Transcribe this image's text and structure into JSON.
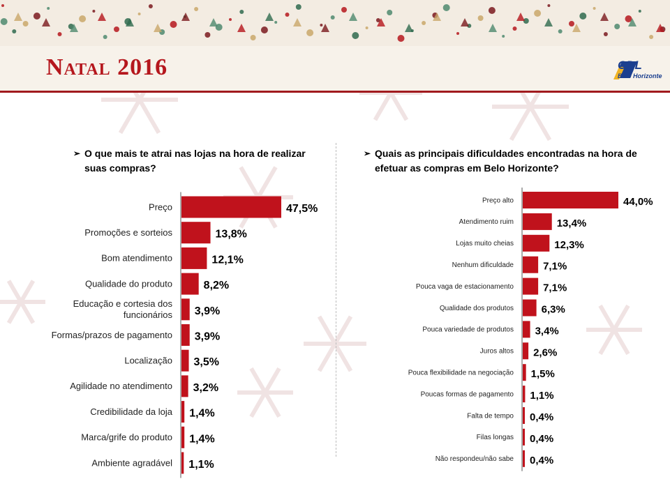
{
  "header": {
    "title": "Natal 2016",
    "logo_text": "CDL",
    "logo_sub": "Belo Horizonte"
  },
  "left_question": "O que mais te atrai nas lojas na hora de realizar suas compras?",
  "right_question": "Quais as principais dificuldades encontradas na hora de efetuar as compras em Belo Horizonte?",
  "colors": {
    "bar": "#c0121c",
    "accent": "#a11a1e"
  },
  "chart_data": [
    {
      "type": "bar",
      "orientation": "horizontal",
      "categories": [
        "Preço",
        "Promoções e sorteios",
        "Bom atendimento",
        "Qualidade do produto",
        "Educação e cortesia dos funcionários",
        "Formas/prazos de pagamento",
        "Localização",
        "Agilidade no atendimento",
        "Credibilidade da loja",
        "Marca/grife do produto",
        "Ambiente agradável"
      ],
      "values": [
        47.5,
        13.8,
        12.1,
        8.2,
        3.9,
        3.9,
        3.5,
        3.2,
        1.4,
        1.4,
        1.1
      ],
      "labels": [
        "47,5%",
        "13,8%",
        "12,1%",
        "8,2%",
        "3,9%",
        "3,9%",
        "3,5%",
        "3,2%",
        "1,4%",
        "1,4%",
        "1,1%"
      ],
      "title": "",
      "xlabel": "",
      "ylabel": ""
    },
    {
      "type": "bar",
      "orientation": "horizontal",
      "categories": [
        "Preço alto",
        "Atendimento ruim",
        "Lojas muito cheias",
        "Nenhum dificuldade",
        "Pouca vaga de estacionamento",
        "Qualidade dos produtos",
        "Pouca variedade de produtos",
        "Juros altos",
        "Pouca flexibilidade na negociação",
        "Poucas formas de pagamento",
        "Falta de tempo",
        "Filas longas",
        "Não respondeu/não sabe"
      ],
      "values": [
        44.0,
        13.4,
        12.3,
        7.1,
        7.1,
        6.3,
        3.4,
        2.6,
        1.5,
        1.1,
        0.4,
        0.4,
        0.4
      ],
      "labels": [
        "44,0%",
        "13,4%",
        "12,3%",
        "7,1%",
        "7,1%",
        "6,3%",
        "3,4%",
        "2,6%",
        "1,5%",
        "1,1%",
        "0,4%",
        "0,4%",
        "0,4%"
      ],
      "title": "",
      "xlabel": "",
      "ylabel": ""
    }
  ]
}
